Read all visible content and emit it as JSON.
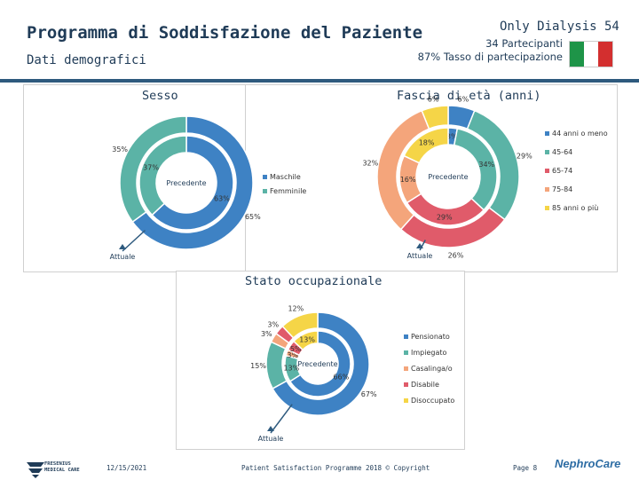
{
  "header": {
    "title": "Programma di Soddisfazione del Paziente",
    "subtitle": "Dati demografici",
    "brand": "Only Dialysis 54",
    "participants": "34 Partecipanti",
    "participation": "87% Tasso di partecipazione",
    "flag_colors": [
      "#1e9448",
      "#ffffff",
      "#d32f2f"
    ]
  },
  "chart_data": [
    {
      "type": "donut",
      "title": "Sesso",
      "ring_labels": {
        "outer": "Attuale",
        "inner": "Precedente"
      },
      "categories": [
        "Maschile",
        "Femminile"
      ],
      "colors": [
        "#3e82c4",
        "#5bb3a6"
      ],
      "series": [
        {
          "name": "Attuale",
          "values": [
            65,
            35
          ]
        },
        {
          "name": "Precedente",
          "values": [
            63,
            37
          ]
        }
      ],
      "value_labels": {
        "outer": [
          "65%",
          "35%"
        ],
        "inner": [
          "63%",
          "37%"
        ]
      }
    },
    {
      "type": "donut",
      "title": "Fascia di età (anni)",
      "ring_labels": {
        "outer": "Attuale",
        "inner": "Precedente"
      },
      "categories": [
        "44 anni o meno",
        "45-64",
        "65-74",
        "75-84",
        "85 anni o più"
      ],
      "colors": [
        "#3e82c4",
        "#5bb3a6",
        "#e05b6a",
        "#f4a57b",
        "#f5d547"
      ],
      "series": [
        {
          "name": "Attuale",
          "values": [
            6,
            29,
            26,
            32,
            6
          ]
        },
        {
          "name": "Precedente",
          "values": [
            3,
            34,
            29,
            16,
            18
          ]
        }
      ],
      "value_labels": {
        "outer": [
          "6%",
          "29%",
          "26%",
          "32%",
          "6%"
        ],
        "inner": [
          "3%",
          "34%",
          "29%",
          "16%",
          "18%"
        ]
      }
    },
    {
      "type": "donut",
      "title": "Stato occupazionale",
      "ring_labels": {
        "outer": "Attuale",
        "inner": "Precedente"
      },
      "categories": [
        "Pensionato",
        "Impiegato",
        "Casalinga/o",
        "Disabile",
        "Disoccupato"
      ],
      "colors": [
        "#3e82c4",
        "#5bb3a6",
        "#f4a57b",
        "#e05b6a",
        "#f5d547"
      ],
      "series": [
        {
          "name": "Attuale",
          "values": [
            67,
            15,
            3,
            3,
            12
          ]
        },
        {
          "name": "Precedente",
          "values": [
            66,
            13,
            3,
            5,
            13
          ]
        }
      ],
      "value_labels": {
        "outer": [
          "67%",
          "15%",
          "3%",
          "3%",
          "12%"
        ],
        "inner": [
          "66%",
          "13%",
          "3%",
          "5%",
          "13%"
        ]
      }
    }
  ],
  "footer": {
    "company": "FRESENIUS MEDICAL CARE",
    "date": "12/15/2021",
    "copyright": "Patient Satisfaction Programme 2018 © Copyright",
    "page": "Page 8",
    "brand": "NephroCare"
  }
}
